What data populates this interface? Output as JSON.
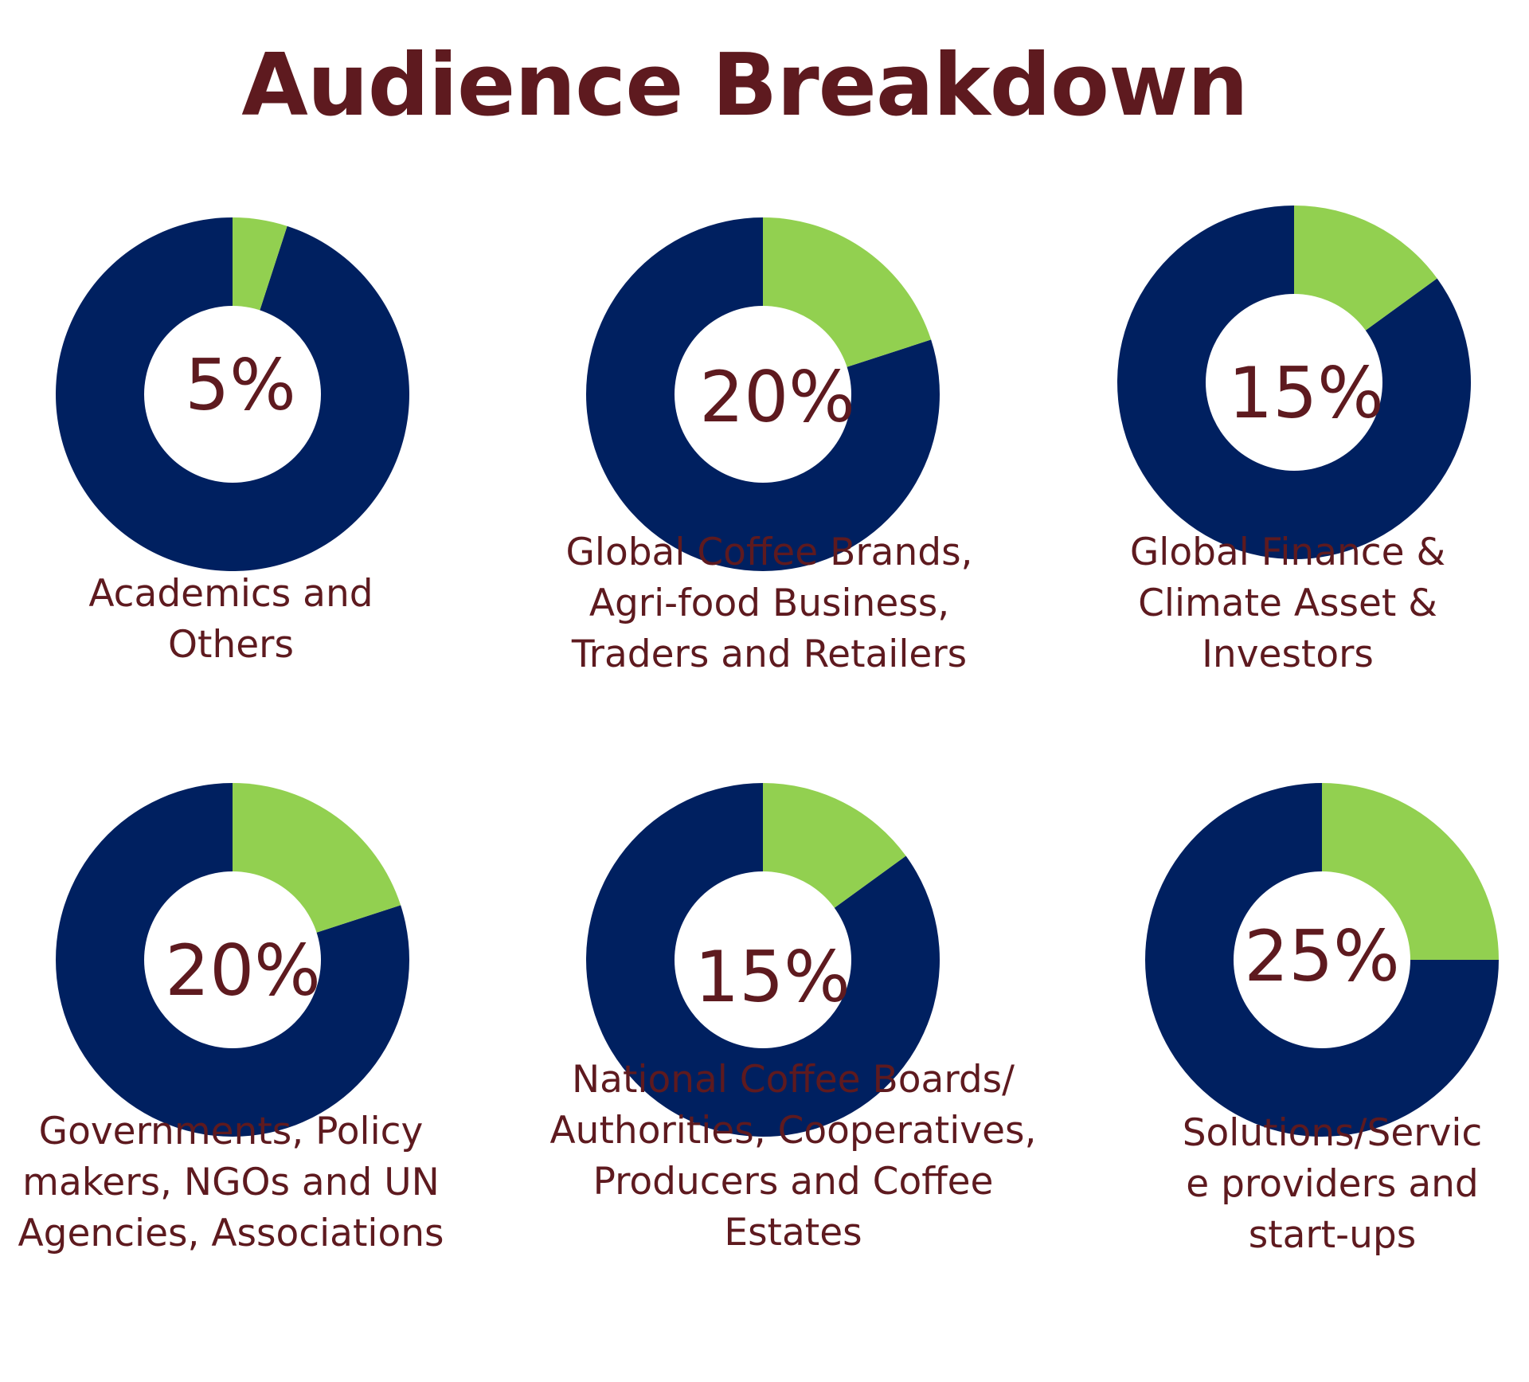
{
  "title": "Audience Breakdown",
  "colors": {
    "title": "#5e1a1f",
    "highlight": "#92d050",
    "base": "#002060",
    "text": "#5e1a1f"
  },
  "chart_data": [
    {
      "type": "pie",
      "label": "Academics and Others",
      "caption_lines": [
        "Academics and",
        "Others"
      ],
      "value_text": "5%",
      "value": 5
    },
    {
      "type": "pie",
      "label": "Global Coffee Brands, Agri-food Business, Traders and Retailers",
      "caption_lines": [
        "Global Coffee Brands,",
        "Agri-food Business,",
        "Traders and Retailers"
      ],
      "value_text": "20%",
      "value": 20
    },
    {
      "type": "pie",
      "label": "Global Finance & Climate Asset & Investors",
      "caption_lines": [
        "Global Finance &",
        "Climate Asset &",
        "Investors"
      ],
      "value_text": "15%",
      "value": 15
    },
    {
      "type": "pie",
      "label": "Governments, Policy makers, NGOs and UN Agencies, Associations",
      "caption_lines": [
        "Governments, Policy",
        "makers, NGOs and UN",
        "Agencies, Associations"
      ],
      "value_text": "20%",
      "value": 20
    },
    {
      "type": "pie",
      "label": "National Coffee Boards/ Authorities, Cooperatives, Producers and Coffee Estates",
      "caption_lines": [
        "National Coffee Boards/",
        "Authorities, Cooperatives,",
        "Producers and Coffee",
        "Estates"
      ],
      "value_text": "15%",
      "value": 15
    },
    {
      "type": "pie",
      "label": "Solutions/Service providers and start-ups",
      "caption_lines": [
        "Solutions/Servic",
        "e providers and",
        "start-ups"
      ],
      "value_text": "25%",
      "value": 25
    }
  ]
}
